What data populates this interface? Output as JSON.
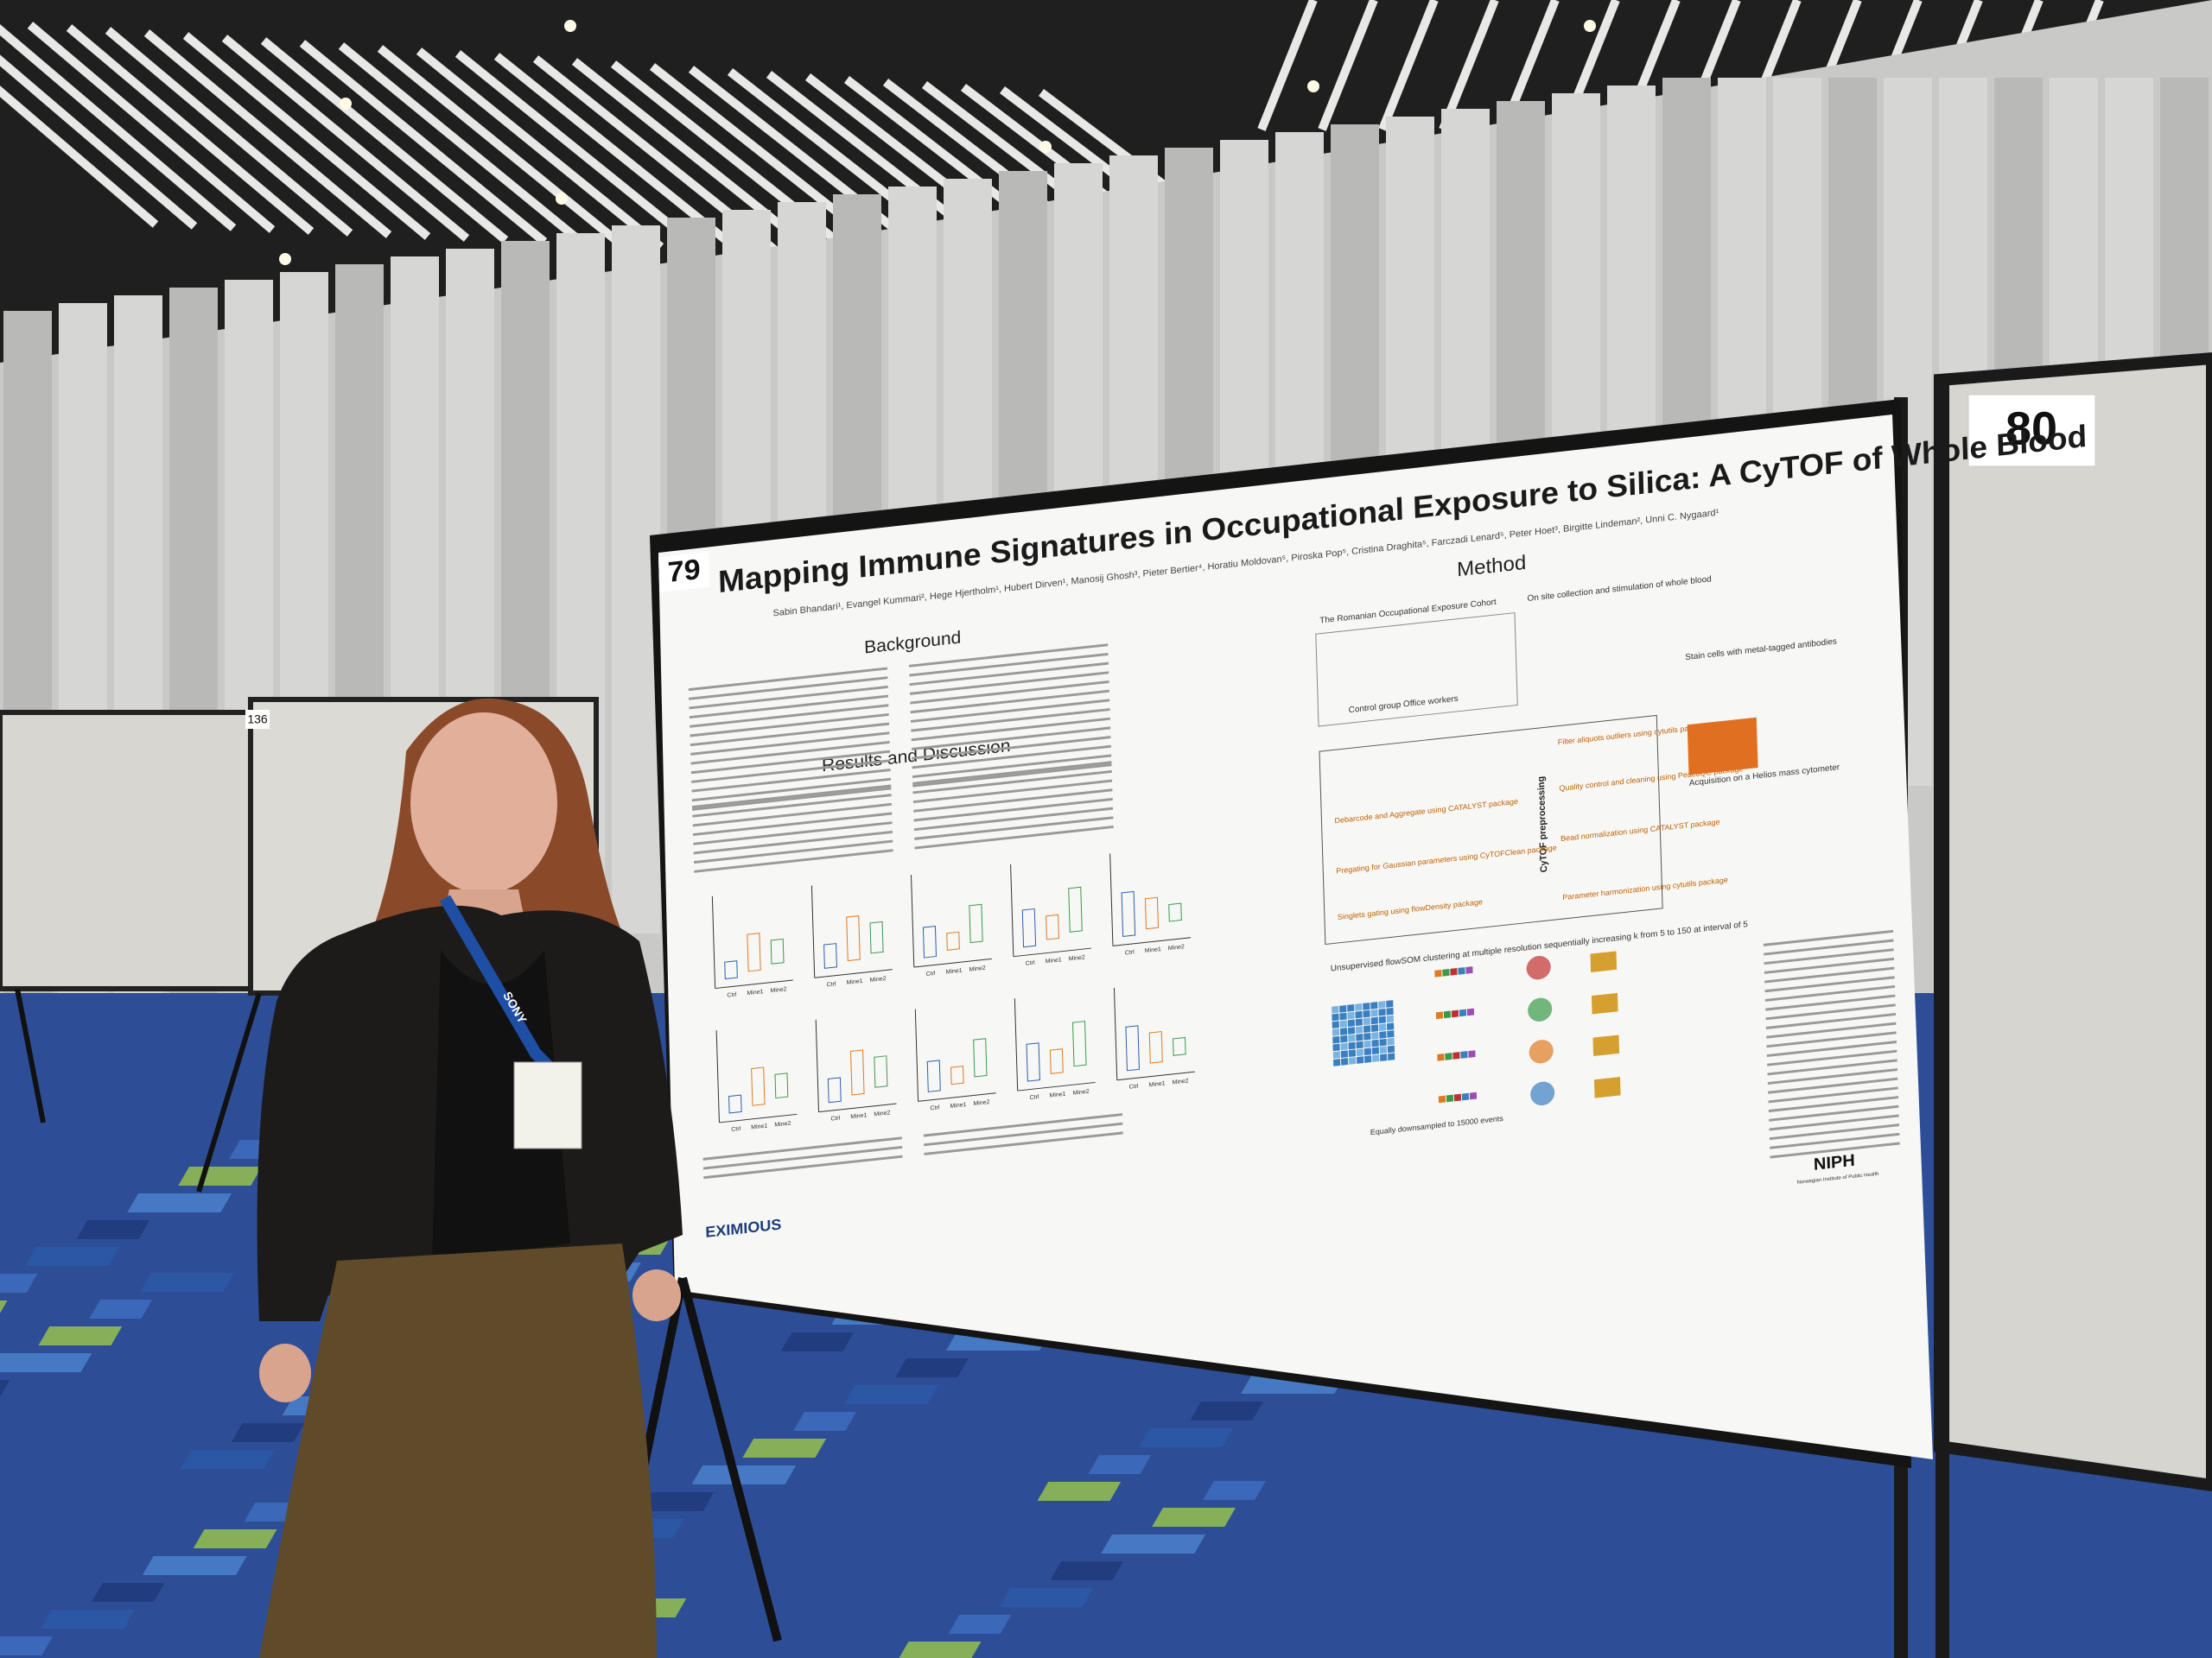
{
  "scene": {
    "board_number_right": "80",
    "board_number_left": "136",
    "poster": {
      "number": "79",
      "title": "Mapping Immune Signatures in Occupational Exposure to Silica: A CyTOF of Whole Blood",
      "authors": "Sabin Bhandari¹, Evangel Kummari², Hege Hjertholm¹, Hubert Dirven¹, Manosij Ghosh³, Pieter Bertier⁴, Horatiu Moldovan⁵, Piroska Pop⁵, Cristina Draghita⁵, Farczadi Lenard⁵, Peter Hoet³, Birgitte Lindeman², Unni C. Nygaard¹",
      "sections": [
        "Background",
        "Results and Discussion",
        "Method"
      ],
      "method_labels": [
        "The Romanian Occupational Exposure Cohort",
        "On site collection and stimulation of whole blood",
        "Stain cells with metal-tagged antibodies",
        "Acquisition on a Helios mass cytometer",
        "Control group Office workers",
        "CyTOF preprocessing",
        "Filter aliquots outliers using cytutils package",
        "Quality control and cleaning using PeacoQC package",
        "Bead normalization using CATALYST package",
        "Parameter harmonization using cytutils package",
        "Debarcode and Aggregate using CATALYST package",
        "Pregating for Gaussian parameters using CyTOFClean package",
        "Singlets gating using flowDensity package",
        "Unsupervised flowSOM clustering at multiple resolution sequentially increasing k from 5 to 150 at interval of 5",
        "Equally downsampled to 15000 events"
      ],
      "plot_groups": [
        "Ctrl",
        "Mine1",
        "Mine2"
      ],
      "logos": [
        "EXIMIOUS",
        "NIPH",
        "Norwegian Institute of Public Health"
      ]
    },
    "lanyard": "SONY"
  }
}
